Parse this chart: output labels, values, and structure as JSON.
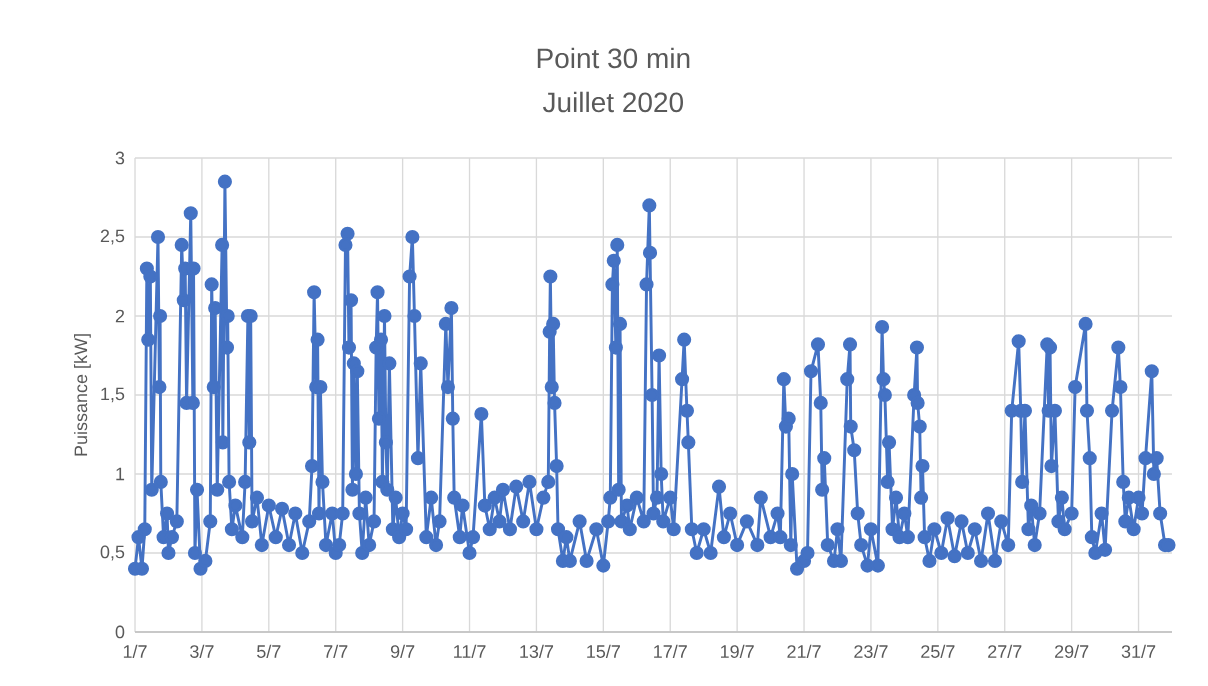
{
  "chart_data": {
    "type": "line",
    "title": "Point 30 min",
    "subtitle": "Juillet 2020",
    "ylabel": "Puissance [kW]",
    "x": [
      "2020-07-01T00:00",
      "2020-07-01T02:30",
      "2020-07-01T05:00",
      "2020-07-01T07:00",
      "2020-07-01T08:30",
      "2020-07-01T09:30",
      "2020-07-01T11:00",
      "2020-07-01T12:00",
      "2020-07-01T16:30",
      "2020-07-01T17:30",
      "2020-07-01T18:00",
      "2020-07-01T18:30",
      "2020-07-01T20:30",
      "2020-07-01T23:00",
      "2020-07-02T00:00",
      "2020-07-02T02:30",
      "2020-07-02T06:00",
      "2020-07-02T09:30",
      "2020-07-02T11:00",
      "2020-07-02T12:00",
      "2020-07-02T13:00",
      "2020-07-02T16:00",
      "2020-07-02T17:30",
      "2020-07-02T18:00",
      "2020-07-02T19:00",
      "2020-07-02T20:30",
      "2020-07-02T23:00",
      "2020-07-03T02:30",
      "2020-07-03T06:00",
      "2020-07-03T07:00",
      "2020-07-03T08:30",
      "2020-07-03T09:30",
      "2020-07-03T11:00",
      "2020-07-03T14:30",
      "2020-07-03T15:00",
      "2020-07-03T16:30",
      "2020-07-03T18:00",
      "2020-07-03T18:30",
      "2020-07-03T19:30",
      "2020-07-03T21:30",
      "2020-07-04T00:00",
      "2020-07-04T05:00",
      "2020-07-04T07:00",
      "2020-07-04T09:00",
      "2020-07-04T10:00",
      "2020-07-04T11:00",
      "2020-07-04T12:00",
      "2020-07-04T15:30",
      "2020-07-04T19:00",
      "2020-07-05T00:00",
      "2020-07-05T05:00",
      "2020-07-05T09:30",
      "2020-07-05T14:30",
      "2020-07-05T19:00",
      "2020-07-06T00:00",
      "2020-07-06T05:00",
      "2020-07-06T07:00",
      "2020-07-06T08:30",
      "2020-07-06T10:00",
      "2020-07-06T11:00",
      "2020-07-06T12:00",
      "2020-07-06T13:00",
      "2020-07-06T14:30",
      "2020-07-06T17:00",
      "2020-07-06T21:30",
      "2020-07-07T00:00",
      "2020-07-07T02:30",
      "2020-07-07T05:00",
      "2020-07-07T07:00",
      "2020-07-07T08:30",
      "2020-07-07T09:30",
      "2020-07-07T11:00",
      "2020-07-07T12:00",
      "2020-07-07T13:00",
      "2020-07-07T14:30",
      "2020-07-07T15:30",
      "2020-07-07T17:00",
      "2020-07-07T19:00",
      "2020-07-07T21:30",
      "2020-07-08T00:00",
      "2020-07-08T03:30",
      "2020-07-08T05:00",
      "2020-07-08T06:00",
      "2020-07-08T07:00",
      "2020-07-08T08:30",
      "2020-07-08T09:30",
      "2020-07-08T11:00",
      "2020-07-08T12:00",
      "2020-07-08T13:00",
      "2020-07-08T14:30",
      "2020-07-08T17:00",
      "2020-07-08T19:00",
      "2020-07-08T21:30",
      "2020-07-09T00:00",
      "2020-07-09T02:30",
      "2020-07-09T05:00",
      "2020-07-09T07:00",
      "2020-07-09T08:30",
      "2020-07-09T11:00",
      "2020-07-09T13:00",
      "2020-07-09T17:00",
      "2020-07-09T20:30",
      "2020-07-10T00:00",
      "2020-07-10T02:30",
      "2020-07-10T07:00",
      "2020-07-10T08:30",
      "2020-07-10T11:00",
      "2020-07-10T12:00",
      "2020-07-10T13:00",
      "2020-07-10T17:00",
      "2020-07-10T19:00",
      "2020-07-11T00:00",
      "2020-07-11T02:30",
      "2020-07-11T08:30",
      "2020-07-11T11:00",
      "2020-07-11T14:30",
      "2020-07-11T18:00",
      "2020-07-11T21:30",
      "2020-07-12T00:00",
      "2020-07-12T05:00",
      "2020-07-12T09:30",
      "2020-07-12T14:30",
      "2020-07-12T19:00",
      "2020-07-13T00:00",
      "2020-07-13T05:00",
      "2020-07-13T08:30",
      "2020-07-13T09:30",
      "2020-07-13T10:00",
      "2020-07-13T11:00",
      "2020-07-13T12:00",
      "2020-07-13T13:00",
      "2020-07-13T14:30",
      "2020-07-13T15:30",
      "2020-07-13T19:00",
      "2020-07-13T21:30",
      "2020-07-14T00:00",
      "2020-07-14T07:00",
      "2020-07-14T12:00",
      "2020-07-14T19:00",
      "2020-07-15T00:00",
      "2020-07-15T03:30",
      "2020-07-15T05:00",
      "2020-07-15T06:30",
      "2020-07-15T07:30",
      "2020-07-15T09:00",
      "2020-07-15T10:00",
      "2020-07-15T11:00",
      "2020-07-15T12:00",
      "2020-07-15T13:00",
      "2020-07-15T17:00",
      "2020-07-15T19:00",
      "2020-07-16T00:00",
      "2020-07-16T05:00",
      "2020-07-16T07:00",
      "2020-07-16T09:00",
      "2020-07-16T09:30",
      "2020-07-16T11:00",
      "2020-07-16T12:00",
      "2020-07-16T14:30",
      "2020-07-16T16:00",
      "2020-07-16T17:30",
      "2020-07-16T19:00",
      "2020-07-17T00:00",
      "2020-07-17T02:30",
      "2020-07-17T08:30",
      "2020-07-17T10:00",
      "2020-07-17T12:00",
      "2020-07-17T13:00",
      "2020-07-17T15:30",
      "2020-07-17T19:00",
      "2020-07-18T00:00",
      "2020-07-18T05:00",
      "2020-07-18T11:00",
      "2020-07-18T14:30",
      "2020-07-18T19:00",
      "2020-07-19T00:00",
      "2020-07-19T07:00",
      "2020-07-19T14:30",
      "2020-07-19T17:00",
      "2020-07-20T00:00",
      "2020-07-20T05:00",
      "2020-07-20T07:00",
      "2020-07-20T09:30",
      "2020-07-20T11:00",
      "2020-07-20T13:00",
      "2020-07-20T14:30",
      "2020-07-20T15:30",
      "2020-07-20T19:00",
      "2020-07-21T00:00",
      "2020-07-21T02:30",
      "2020-07-21T05:00",
      "2020-07-21T10:00",
      "2020-07-21T12:00",
      "2020-07-21T13:00",
      "2020-07-21T14:30",
      "2020-07-21T17:00",
      "2020-07-21T21:30",
      "2020-07-22T00:00",
      "2020-07-22T02:30",
      "2020-07-22T07:00",
      "2020-07-22T09:00",
      "2020-07-22T09:30",
      "2020-07-22T12:00",
      "2020-07-22T14:30",
      "2020-07-22T17:00",
      "2020-07-22T21:30",
      "2020-07-23T00:00",
      "2020-07-23T05:00",
      "2020-07-23T08:00",
      "2020-07-23T09:00",
      "2020-07-23T10:00",
      "2020-07-23T12:00",
      "2020-07-23T13:00",
      "2020-07-23T15:30",
      "2020-07-23T18:00",
      "2020-07-23T20:30",
      "2020-07-24T00:00",
      "2020-07-24T02:30",
      "2020-07-24T07:00",
      "2020-07-24T09:00",
      "2020-07-24T09:30",
      "2020-07-24T11:00",
      "2020-07-24T12:00",
      "2020-07-24T13:00",
      "2020-07-24T14:30",
      "2020-07-24T18:00",
      "2020-07-24T21:30",
      "2020-07-25T02:30",
      "2020-07-25T07:00",
      "2020-07-25T12:00",
      "2020-07-25T17:00",
      "2020-07-25T21:30",
      "2020-07-26T02:30",
      "2020-07-26T07:00",
      "2020-07-26T12:00",
      "2020-07-26T17:00",
      "2020-07-26T21:30",
      "2020-07-27T02:30",
      "2020-07-27T05:00",
      "2020-07-27T10:00",
      "2020-07-27T11:30",
      "2020-07-27T12:30",
      "2020-07-27T14:30",
      "2020-07-27T17:00",
      "2020-07-27T19:00",
      "2020-07-27T21:30",
      "2020-07-28T01:00",
      "2020-07-28T06:30",
      "2020-07-28T07:30",
      "2020-07-28T08:30",
      "2020-07-28T09:30",
      "2020-07-28T12:00",
      "2020-07-28T14:30",
      "2020-07-28T17:00",
      "2020-07-28T19:00",
      "2020-07-29T00:00",
      "2020-07-29T02:30",
      "2020-07-29T10:00",
      "2020-07-29T11:00",
      "2020-07-29T13:00",
      "2020-07-29T14:30",
      "2020-07-29T17:00",
      "2020-07-29T21:30",
      "2020-07-30T00:00",
      "2020-07-30T05:00",
      "2020-07-30T09:30",
      "2020-07-30T11:00",
      "2020-07-30T13:00",
      "2020-07-30T14:30",
      "2020-07-30T17:00",
      "2020-07-30T20:30",
      "2020-07-31T00:00",
      "2020-07-31T02:30",
      "2020-07-31T05:00",
      "2020-07-31T09:30",
      "2020-07-31T11:00",
      "2020-07-31T13:00",
      "2020-07-31T15:30",
      "2020-07-31T19:00",
      "2020-07-31T21:30"
    ],
    "series": [
      {
        "color": "#4472c4",
        "values": [
          0.4,
          0.6,
          0.4,
          0.65,
          2.3,
          1.85,
          2.25,
          0.9,
          2.5,
          1.55,
          2.0,
          0.95,
          0.6,
          0.75,
          0.5,
          0.6,
          0.7,
          2.45,
          2.1,
          2.3,
          1.45,
          2.65,
          1.45,
          2.3,
          0.5,
          0.9,
          0.4,
          0.45,
          0.7,
          2.2,
          1.55,
          2.05,
          0.9,
          2.45,
          1.2,
          2.85,
          1.8,
          2.0,
          0.95,
          0.65,
          0.8,
          0.6,
          0.95,
          2.0,
          1.2,
          2.0,
          0.7,
          0.85,
          0.55,
          0.8,
          0.6,
          0.78,
          0.55,
          0.75,
          0.5,
          0.7,
          1.05,
          2.15,
          1.55,
          1.85,
          0.75,
          1.55,
          0.95,
          0.55,
          0.75,
          0.5,
          0.55,
          0.75,
          2.45,
          2.52,
          1.8,
          2.1,
          0.9,
          1.7,
          1.0,
          1.65,
          0.75,
          0.5,
          0.85,
          0.55,
          0.7,
          1.8,
          2.15,
          1.35,
          1.85,
          0.95,
          2.0,
          1.2,
          0.9,
          1.7,
          0.65,
          0.85,
          0.6,
          0.75,
          0.65,
          2.25,
          2.5,
          2.0,
          1.1,
          1.7,
          0.6,
          0.85,
          0.55,
          0.7,
          1.95,
          1.55,
          2.05,
          1.35,
          0.85,
          0.6,
          0.8,
          0.5,
          0.6,
          1.38,
          0.8,
          0.65,
          0.85,
          0.7,
          0.9,
          0.65,
          0.92,
          0.7,
          0.95,
          0.65,
          0.85,
          0.95,
          1.9,
          2.25,
          1.55,
          1.95,
          1.45,
          1.05,
          0.65,
          0.45,
          0.6,
          0.45,
          0.7,
          0.45,
          0.65,
          0.42,
          0.7,
          0.85,
          2.2,
          2.35,
          1.8,
          2.45,
          0.9,
          1.95,
          0.7,
          0.8,
          0.65,
          0.85,
          0.7,
          2.2,
          2.7,
          2.4,
          1.5,
          0.75,
          0.85,
          1.75,
          1.0,
          0.7,
          0.85,
          0.65,
          1.6,
          1.85,
          1.4,
          1.2,
          0.65,
          0.5,
          0.65,
          0.5,
          0.92,
          0.6,
          0.75,
          0.55,
          0.7,
          0.55,
          0.85,
          0.6,
          0.75,
          0.6,
          1.6,
          1.3,
          1.35,
          0.55,
          1.0,
          0.4,
          0.45,
          0.5,
          1.65,
          1.82,
          1.45,
          0.9,
          1.1,
          0.55,
          0.45,
          0.65,
          0.45,
          1.6,
          1.82,
          1.3,
          1.15,
          0.75,
          0.55,
          0.42,
          0.65,
          0.42,
          1.93,
          1.6,
          1.5,
          0.95,
          1.2,
          0.65,
          0.85,
          0.6,
          0.75,
          0.6,
          1.5,
          1.8,
          1.45,
          1.3,
          0.85,
          1.05,
          0.6,
          0.45,
          0.65,
          0.5,
          0.72,
          0.48,
          0.7,
          0.5,
          0.65,
          0.45,
          0.75,
          0.45,
          0.7,
          0.55,
          1.4,
          1.84,
          1.4,
          0.95,
          1.4,
          0.65,
          0.8,
          0.55,
          0.75,
          1.82,
          1.4,
          1.8,
          1.05,
          1.4,
          0.7,
          0.85,
          0.65,
          0.75,
          1.55,
          1.95,
          1.4,
          1.1,
          0.6,
          0.5,
          0.75,
          0.52,
          1.4,
          1.8,
          1.55,
          0.95,
          0.7,
          0.85,
          0.65,
          0.85,
          0.75,
          1.1,
          1.65,
          1.0,
          1.1,
          0.75,
          0.55,
          0.55
        ]
      }
    ],
    "xlim": [
      "2020-07-01",
      "2020-08-01"
    ],
    "xticks": [
      {
        "value": "2020-07-01",
        "label": "1/7"
      },
      {
        "value": "2020-07-03",
        "label": "3/7"
      },
      {
        "value": "2020-07-05",
        "label": "5/7"
      },
      {
        "value": "2020-07-07",
        "label": "7/7"
      },
      {
        "value": "2020-07-09",
        "label": "9/7"
      },
      {
        "value": "2020-07-11",
        "label": "11/7"
      },
      {
        "value": "2020-07-13",
        "label": "13/7"
      },
      {
        "value": "2020-07-15",
        "label": "15/7"
      },
      {
        "value": "2020-07-17",
        "label": "17/7"
      },
      {
        "value": "2020-07-19",
        "label": "19/7"
      },
      {
        "value": "2020-07-21",
        "label": "21/7"
      },
      {
        "value": "2020-07-23",
        "label": "23/7"
      },
      {
        "value": "2020-07-25",
        "label": "25/7"
      },
      {
        "value": "2020-07-27",
        "label": "27/7"
      },
      {
        "value": "2020-07-29",
        "label": "29/7"
      },
      {
        "value": "2020-07-31",
        "label": "31/7"
      }
    ],
    "ylim": [
      0,
      3
    ],
    "yticks": [
      0,
      {
        "value": 0.5,
        "label": "0,5"
      },
      1,
      {
        "value": 1.5,
        "label": "1,5"
      },
      2,
      {
        "value": 2.5,
        "label": "2,5"
      },
      3
    ],
    "grid": true,
    "marker": "circle",
    "line_style": "solid"
  }
}
